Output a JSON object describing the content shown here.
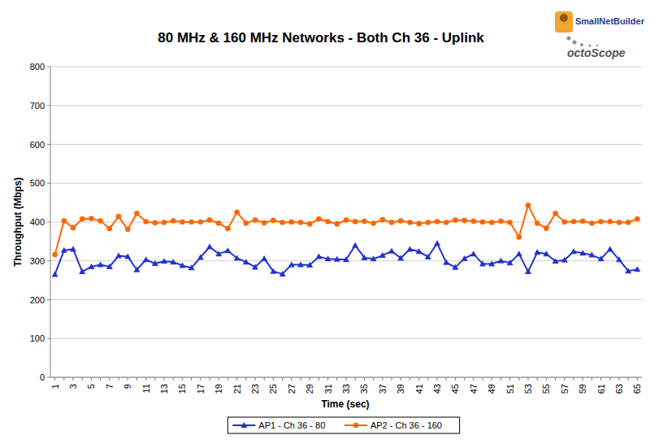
{
  "chart_data": {
    "type": "line",
    "title": "80 MHz & 160 MHz Networks - Both Ch 36 - Uplink",
    "x_label": "Time (sec)",
    "y_label": "Throughput (Mbps)",
    "annotations": [
      "SmallNetBuilder",
      "octoScope"
    ],
    "categories": [
      "1",
      null,
      "3",
      null,
      "5",
      null,
      "7",
      null,
      "9",
      null,
      "11",
      null,
      "13",
      null,
      "15",
      null,
      "17",
      null,
      "19",
      null,
      "21",
      null,
      "23",
      null,
      "25",
      null,
      "27",
      null,
      "29",
      null,
      "31",
      null,
      "33",
      null,
      "35",
      null,
      "37",
      null,
      "39",
      null,
      "41",
      null,
      "43",
      null,
      "45",
      null,
      "47",
      null,
      "49",
      null,
      "51",
      null,
      "53",
      null,
      "55",
      null,
      "57",
      null,
      "59",
      null,
      "61",
      null,
      "63",
      null,
      "65"
    ],
    "ylim": [
      0,
      800
    ],
    "yticks": [
      0,
      100,
      200,
      300,
      400,
      500,
      600,
      700,
      800
    ],
    "grid": true,
    "legend": "bottom",
    "series": [
      {
        "name": "AP1 - Ch 36 - 80",
        "color": "#2233cc",
        "marker": "triangle",
        "line_style": "solid",
        "values": [
          265,
          327,
          330,
          272,
          285,
          290,
          285,
          313,
          311,
          277,
          303,
          293,
          299,
          297,
          288,
          282,
          309,
          336,
          318,
          326,
          307,
          297,
          284,
          306,
          273,
          266,
          290,
          290,
          289,
          311,
          305,
          304,
          303,
          340,
          308,
          305,
          314,
          325,
          307,
          330,
          324,
          310,
          345,
          296,
          283,
          306,
          318,
          292,
          292,
          300,
          295,
          318,
          272,
          322,
          318,
          299,
          302,
          324,
          320,
          315,
          305,
          330,
          303,
          274,
          278
        ]
      },
      {
        "name": "AP2 - Ch 36 - 160",
        "color": "#ff6600",
        "marker": "circle",
        "line_style": "solid",
        "values": [
          316,
          403,
          385,
          408,
          409,
          403,
          383,
          414,
          381,
          422,
          401,
          398,
          399,
          403,
          400,
          400,
          400,
          405,
          397,
          383,
          425,
          397,
          405,
          398,
          404,
          399,
          400,
          399,
          395,
          408,
          401,
          395,
          405,
          401,
          402,
          397,
          406,
          399,
          403,
          399,
          396,
          399,
          401,
          399,
          405,
          404,
          402,
          400,
          399,
          402,
          399,
          361,
          443,
          397,
          384,
          422,
          400,
          401,
          402,
          397,
          401,
          401,
          399,
          399,
          408
        ]
      }
    ]
  }
}
